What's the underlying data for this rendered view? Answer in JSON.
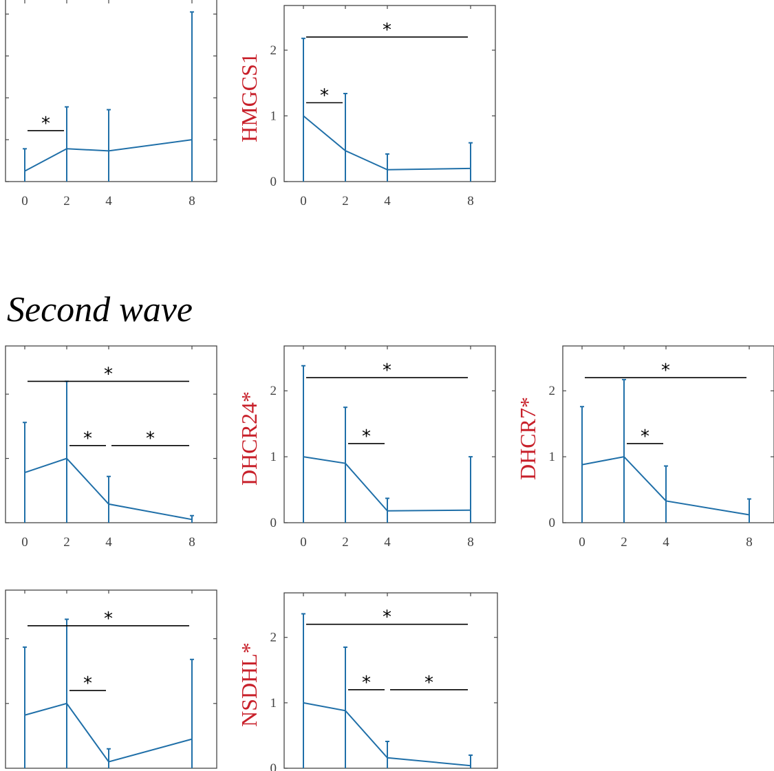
{
  "section_title": "Second wave",
  "colors": {
    "series": "#1f6fa8",
    "gene_label": "#c8202a",
    "axis": "#444444",
    "bracket": "#000000"
  },
  "chart_data": [
    {
      "type": "line",
      "panel": "row1-col1",
      "ylabel": "",
      "x": [
        0,
        2,
        4,
        8
      ],
      "xticks": [
        0,
        2,
        4,
        8
      ],
      "ylim": [
        0,
        2.7
      ],
      "yticks": [
        0,
        0.6,
        1.2,
        1.8,
        2.4
      ],
      "ytick_labels": [],
      "series": [
        {
          "values": [
            0.15,
            0.47,
            0.44,
            0.6
          ],
          "errors": [
            0.32,
            0.6,
            0.59,
            1.83
          ]
        }
      ],
      "brackets": [
        {
          "from": 0,
          "to": 2,
          "y": 0.73,
          "label": "*"
        }
      ]
    },
    {
      "type": "line",
      "panel": "row1-col2",
      "ylabel": "HMGCS1",
      "x": [
        0,
        2,
        4,
        8
      ],
      "xticks": [
        0,
        2,
        4,
        8
      ],
      "ylim": [
        0,
        2.68
      ],
      "yticks": [
        0,
        1,
        2
      ],
      "ytick_labels": [
        "0",
        "1",
        "2"
      ],
      "series": [
        {
          "values": [
            1.0,
            0.47,
            0.18,
            0.2
          ],
          "errors": [
            1.18,
            0.87,
            0.24,
            0.39
          ]
        }
      ],
      "brackets": [
        {
          "from": 0,
          "to": 2,
          "y": 1.2,
          "label": "*"
        },
        {
          "from": 0,
          "to": 8,
          "y": 2.2,
          "label": "*"
        }
      ]
    },
    {
      "type": "line",
      "panel": "row2-col1",
      "ylabel": "",
      "x": [
        0,
        2,
        4,
        8
      ],
      "xticks": [
        0,
        2,
        4,
        8
      ],
      "ylim": [
        0,
        2.75
      ],
      "yticks": [
        0,
        1,
        2
      ],
      "ytick_labels": [],
      "series": [
        {
          "values": [
            0.78,
            1.0,
            0.29,
            0.05
          ],
          "errors": [
            0.78,
            1.2,
            0.43,
            0.06
          ]
        }
      ],
      "brackets": [
        {
          "from": 0,
          "to": 8,
          "y": 2.2,
          "label": "*"
        },
        {
          "from": 2,
          "to": 4,
          "y": 1.2,
          "label": "*"
        },
        {
          "from": 4,
          "to": 8,
          "y": 1.2,
          "label": "*"
        }
      ]
    },
    {
      "type": "line",
      "panel": "row2-col2",
      "ylabel": "DHCR24*",
      "x": [
        0,
        2,
        4,
        8
      ],
      "xticks": [
        0,
        2,
        4,
        8
      ],
      "ylim": [
        0,
        2.68
      ],
      "yticks": [
        0,
        1,
        2
      ],
      "ytick_labels": [
        "0",
        "1",
        "2"
      ],
      "series": [
        {
          "values": [
            1.0,
            0.9,
            0.18,
            0.19
          ],
          "errors": [
            1.38,
            0.85,
            0.19,
            0.81
          ]
        }
      ],
      "brackets": [
        {
          "from": 2,
          "to": 4,
          "y": 1.2,
          "label": "*"
        },
        {
          "from": 0,
          "to": 8,
          "y": 2.2,
          "label": "*"
        }
      ]
    },
    {
      "type": "line",
      "panel": "row2-col3",
      "ylabel": "DHCR7*",
      "x": [
        0,
        2,
        4,
        8
      ],
      "xticks": [
        0,
        2,
        4,
        8
      ],
      "ylim": [
        0,
        2.68
      ],
      "yticks": [
        0,
        1,
        2
      ],
      "ytick_labels": [
        "0",
        "1",
        "2"
      ],
      "series": [
        {
          "values": [
            0.88,
            1.0,
            0.33,
            0.12
          ],
          "errors": [
            0.88,
            1.17,
            0.53,
            0.24
          ]
        }
      ],
      "brackets": [
        {
          "from": 2,
          "to": 4,
          "y": 1.2,
          "label": "*"
        },
        {
          "from": 0,
          "to": 8,
          "y": 2.2,
          "label": "*"
        }
      ]
    },
    {
      "type": "line",
      "panel": "row3-col1",
      "ylabel": "",
      "x": [
        0,
        2,
        4,
        8
      ],
      "xticks": [
        0,
        2,
        4,
        8
      ],
      "ylim": [
        0,
        2.75
      ],
      "yticks": [
        1,
        2
      ],
      "ytick_labels": [],
      "series": [
        {
          "values": [
            0.82,
            1.0,
            0.1,
            0.45
          ],
          "errors": [
            1.05,
            1.3,
            0.2,
            1.23
          ]
        }
      ],
      "brackets": [
        {
          "from": 2,
          "to": 4,
          "y": 1.2,
          "label": "*"
        },
        {
          "from": 0,
          "to": 8,
          "y": 2.2,
          "label": "*"
        }
      ]
    },
    {
      "type": "line",
      "panel": "row3-col2",
      "ylabel": "NSDHL*",
      "x": [
        0,
        2,
        4,
        8
      ],
      "xticks": [
        0,
        2,
        4,
        8
      ],
      "ylim": [
        0,
        2.68
      ],
      "yticks": [
        0,
        1,
        2
      ],
      "ytick_labels": [
        "0",
        "1",
        "2"
      ],
      "series": [
        {
          "values": [
            1.0,
            0.88,
            0.16,
            0.04
          ],
          "errors": [
            1.36,
            0.97,
            0.25,
            0.16
          ]
        }
      ],
      "brackets": [
        {
          "from": 2,
          "to": 4,
          "y": 1.2,
          "label": "*"
        },
        {
          "from": 4,
          "to": 8,
          "y": 1.2,
          "label": "*"
        },
        {
          "from": 0,
          "to": 8,
          "y": 2.2,
          "label": "*"
        }
      ]
    }
  ]
}
